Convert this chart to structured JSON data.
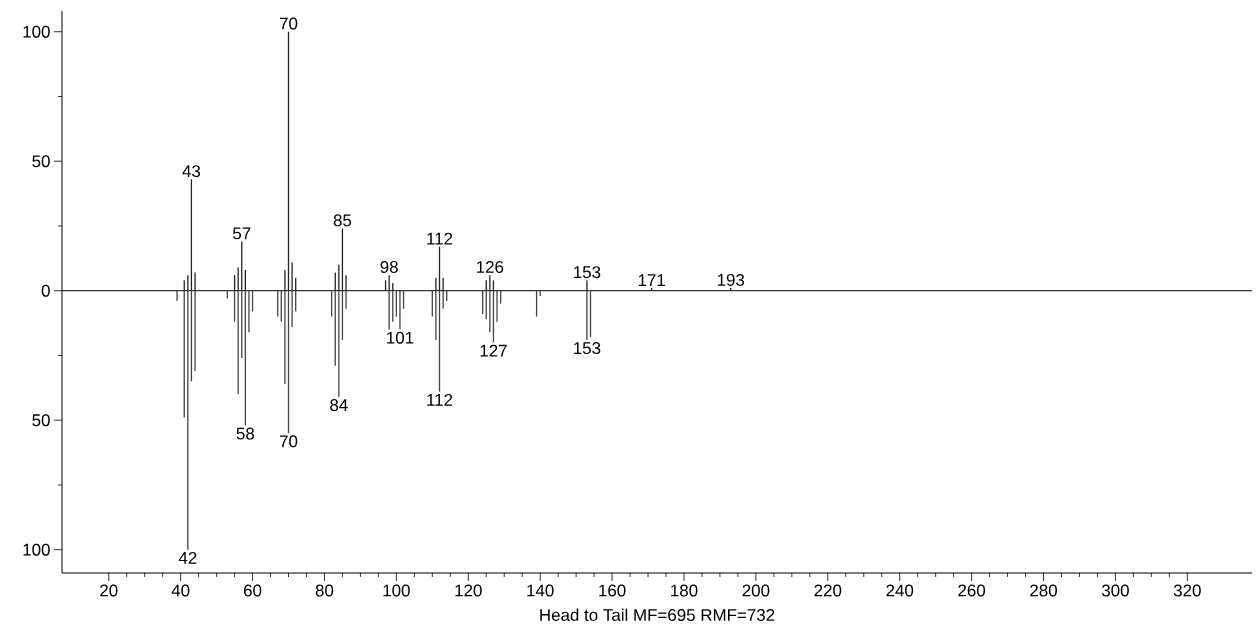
{
  "chart_data": {
    "type": "bar",
    "title": "Head to Tail MF=695 RMF=732",
    "xlim": [
      7,
      338
    ],
    "xticks": [
      20,
      40,
      60,
      80,
      100,
      120,
      140,
      160,
      180,
      200,
      220,
      240,
      260,
      280,
      300,
      320
    ],
    "ylim": [
      -109,
      108
    ],
    "yticks": [
      {
        "value": -100,
        "label": "100"
      },
      {
        "value": -50,
        "label": "50"
      },
      {
        "value": 0,
        "label": "0"
      },
      {
        "value": 50,
        "label": "50"
      },
      {
        "value": 100,
        "label": "100"
      }
    ],
    "series": [
      {
        "color": "#222222",
        "x": [
          41,
          42,
          43,
          44,
          55,
          56,
          57,
          58,
          69,
          70,
          71,
          72,
          83,
          84,
          85,
          86,
          97,
          98,
          99,
          111,
          112,
          113,
          125,
          126,
          127,
          153,
          171,
          193
        ],
        "values": [
          4,
          6,
          43,
          7,
          6,
          9,
          19,
          8,
          8,
          100,
          11,
          5,
          7,
          10,
          24,
          6,
          4,
          6,
          3,
          5,
          17,
          5,
          4,
          6,
          4,
          4,
          1,
          1
        ]
      },
      {
        "color": "#444444",
        "x": [
          39,
          41,
          42,
          43,
          44,
          53,
          55,
          56,
          57,
          58,
          59,
          60,
          67,
          68,
          69,
          70,
          71,
          72,
          82,
          83,
          84,
          85,
          86,
          98,
          99,
          100,
          101,
          102,
          110,
          111,
          112,
          113,
          114,
          124,
          125,
          126,
          127,
          128,
          129,
          139,
          140,
          153,
          154
        ],
        "values": [
          -4,
          -49,
          -100,
          -35,
          -31,
          -3,
          -12,
          -40,
          -26,
          -52,
          -16,
          -8,
          -10,
          -12,
          -36,
          -55,
          -14,
          -8,
          -10,
          -29,
          -41,
          -19,
          -7,
          -15,
          -12,
          -10,
          -15,
          -7,
          -10,
          -19,
          -39,
          -7,
          -4,
          -9,
          -11,
          -16,
          -20,
          -12,
          -5,
          -10,
          -2,
          -19,
          -18
        ]
      }
    ],
    "ref_lines": [
      {
        "axis": "y",
        "value": 0
      }
    ],
    "annotations": [
      {
        "text": "43",
        "x": 43,
        "y": 43
      },
      {
        "text": "57",
        "x": 57,
        "y": 19
      },
      {
        "text": "70",
        "x": 70,
        "y": 100
      },
      {
        "text": "85",
        "x": 85,
        "y": 24
      },
      {
        "text": "98",
        "x": 98,
        "y": 6
      },
      {
        "text": "112",
        "x": 112,
        "y": 17
      },
      {
        "text": "126",
        "x": 126,
        "y": 6
      },
      {
        "text": "153",
        "x": 153,
        "y": 4
      },
      {
        "text": "171",
        "x": 171,
        "y": 1
      },
      {
        "text": "193",
        "x": 193,
        "y": 1
      },
      {
        "text": "42",
        "x": 42,
        "y": -100
      },
      {
        "text": "58",
        "x": 58,
        "y": -52
      },
      {
        "text": "70",
        "x": 70,
        "y": -55
      },
      {
        "text": "84",
        "x": 84,
        "y": -41
      },
      {
        "text": "101",
        "x": 101,
        "y": -15
      },
      {
        "text": "112",
        "x": 112,
        "y": -39
      },
      {
        "text": "127",
        "x": 127,
        "y": -20
      },
      {
        "text": "153",
        "x": 153,
        "y": -19
      }
    ]
  }
}
